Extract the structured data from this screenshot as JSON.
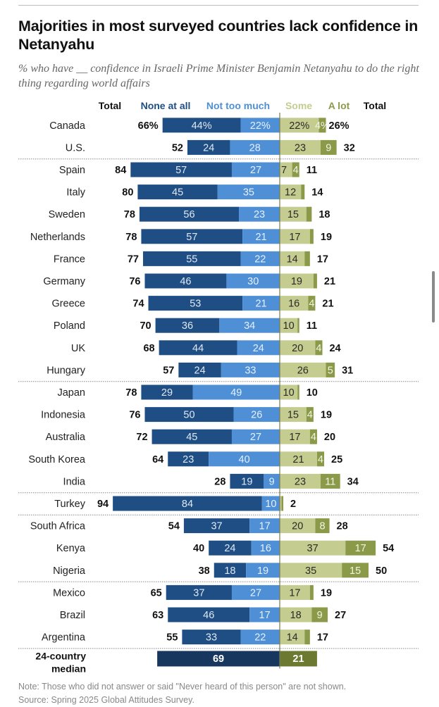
{
  "title": "Majorities in most surveyed countries lack confidence in Netanyahu",
  "subtitle": "% who have __ confidence in Israeli Prime Minister Benjamin Netanyahu to do the right thing regarding world affairs",
  "note": "Note: Those who did not answer or said \"Never heard of this person\" are not shown.",
  "source": "Source: Spring 2025 Global Attitudes Survey.",
  "chart_data": {
    "type": "bar",
    "orientation": "horizontal-diverging",
    "title": "Majorities in most surveyed countries lack confidence in Netanyahu",
    "subtitle": "% who have __ confidence in Israeli Prime Minister Benjamin Netanyahu to do the right thing regarding world affairs",
    "column_headers": [
      "Total",
      "None at all",
      "Not too much",
      "Some",
      "A lot",
      "Total"
    ],
    "colors": {
      "none_at_all": "#1f4e85",
      "not_too_much": "#4f8fd6",
      "some": "#c5cc8f",
      "a_lot": "#8a9a48",
      "median_negative": "#17375e",
      "median_positive": "#6b7a30",
      "header_none": "#1f4e85",
      "header_not_too_much": "#4f8fd6",
      "header_some": "#c5cc8f",
      "header_a_lot": "#8a9a48"
    },
    "series": [
      {
        "name": "None at all",
        "side": "negative"
      },
      {
        "name": "Not too much",
        "side": "negative"
      },
      {
        "name": "Some",
        "side": "positive"
      },
      {
        "name": "A lot",
        "side": "positive"
      }
    ],
    "groups": [
      {
        "rows": [
          {
            "country": "Canada",
            "none": 44,
            "not_too_much": 22,
            "some": 22,
            "a_lot": 4,
            "neg_total": 66,
            "pos_total": 26,
            "percent": true
          },
          {
            "country": "U.S.",
            "none": 24,
            "not_too_much": 28,
            "some": 23,
            "a_lot": 9,
            "neg_total": 52,
            "pos_total": 32
          }
        ]
      },
      {
        "rows": [
          {
            "country": "Spain",
            "none": 57,
            "not_too_much": 27,
            "some": 7,
            "a_lot": 4,
            "neg_total": 84,
            "pos_total": 11
          },
          {
            "country": "Italy",
            "none": 45,
            "not_too_much": 35,
            "some": 12,
            "a_lot": 2,
            "neg_total": 80,
            "pos_total": 14,
            "hide_a_lot_label": true
          },
          {
            "country": "Sweden",
            "none": 56,
            "not_too_much": 23,
            "some": 15,
            "a_lot": 3,
            "neg_total": 78,
            "pos_total": 18,
            "hide_a_lot_label": true
          },
          {
            "country": "Netherlands",
            "none": 57,
            "not_too_much": 21,
            "some": 17,
            "a_lot": 2,
            "neg_total": 78,
            "pos_total": 19,
            "hide_a_lot_label": true
          },
          {
            "country": "France",
            "none": 55,
            "not_too_much": 22,
            "some": 14,
            "a_lot": 3,
            "neg_total": 77,
            "pos_total": 17,
            "hide_a_lot_label": true
          },
          {
            "country": "Germany",
            "none": 46,
            "not_too_much": 30,
            "some": 19,
            "a_lot": 2,
            "neg_total": 76,
            "pos_total": 21,
            "hide_a_lot_label": true
          },
          {
            "country": "Greece",
            "none": 53,
            "not_too_much": 21,
            "some": 16,
            "a_lot": 4,
            "neg_total": 74,
            "pos_total": 21
          },
          {
            "country": "Poland",
            "none": 36,
            "not_too_much": 34,
            "some": 10,
            "a_lot": 1,
            "neg_total": 70,
            "pos_total": 11,
            "hide_a_lot_label": true
          },
          {
            "country": "UK",
            "none": 44,
            "not_too_much": 24,
            "some": 20,
            "a_lot": 4,
            "neg_total": 68,
            "pos_total": 24
          },
          {
            "country": "Hungary",
            "none": 24,
            "not_too_much": 33,
            "some": 26,
            "a_lot": 5,
            "neg_total": 57,
            "pos_total": 31
          }
        ]
      },
      {
        "rows": [
          {
            "country": "Japan",
            "none": 29,
            "not_too_much": 49,
            "some": 10,
            "a_lot": 1,
            "neg_total": 78,
            "pos_total": 10,
            "hide_a_lot_label": true
          },
          {
            "country": "Indonesia",
            "none": 50,
            "not_too_much": 26,
            "some": 15,
            "a_lot": 4,
            "neg_total": 76,
            "pos_total": 19
          },
          {
            "country": "Australia",
            "none": 45,
            "not_too_much": 27,
            "some": 17,
            "a_lot": 4,
            "neg_total": 72,
            "pos_total": 20
          },
          {
            "country": "South Korea",
            "none": 23,
            "not_too_much": 40,
            "some": 21,
            "a_lot": 4,
            "neg_total": 64,
            "pos_total": 25
          },
          {
            "country": "India",
            "none": 19,
            "not_too_much": 9,
            "some": 23,
            "a_lot": 11,
            "neg_total": 28,
            "pos_total": 34
          }
        ]
      },
      {
        "rows": [
          {
            "country": "Turkey",
            "none": 84,
            "not_too_much": 10,
            "some": 1,
            "a_lot": 1,
            "neg_total": 94,
            "pos_total": 2,
            "hide_some_label": true,
            "hide_a_lot_label": true
          }
        ]
      },
      {
        "rows": [
          {
            "country": "South Africa",
            "none": 37,
            "not_too_much": 17,
            "some": 20,
            "a_lot": 8,
            "neg_total": 54,
            "pos_total": 28
          },
          {
            "country": "Kenya",
            "none": 24,
            "not_too_much": 16,
            "some": 37,
            "a_lot": 17,
            "neg_total": 40,
            "pos_total": 54
          },
          {
            "country": "Nigeria",
            "none": 18,
            "not_too_much": 19,
            "some": 35,
            "a_lot": 15,
            "neg_total": 38,
            "pos_total": 50
          }
        ]
      },
      {
        "rows": [
          {
            "country": "Mexico",
            "none": 37,
            "not_too_much": 27,
            "some": 17,
            "a_lot": 2,
            "neg_total": 65,
            "pos_total": 19,
            "hide_a_lot_label": true
          },
          {
            "country": "Brazil",
            "none": 46,
            "not_too_much": 17,
            "some": 18,
            "a_lot": 9,
            "neg_total": 63,
            "pos_total": 27
          },
          {
            "country": "Argentina",
            "none": 33,
            "not_too_much": 22,
            "some": 14,
            "a_lot": 3,
            "neg_total": 55,
            "pos_total": 17,
            "hide_a_lot_label": true
          }
        ]
      }
    ],
    "median": {
      "label_line1": "24-country",
      "label_line2": "median",
      "no_confidence": 69,
      "confidence": 21
    },
    "xlim": [
      -100,
      100
    ],
    "grid": false,
    "legend": "top (column headers)"
  }
}
